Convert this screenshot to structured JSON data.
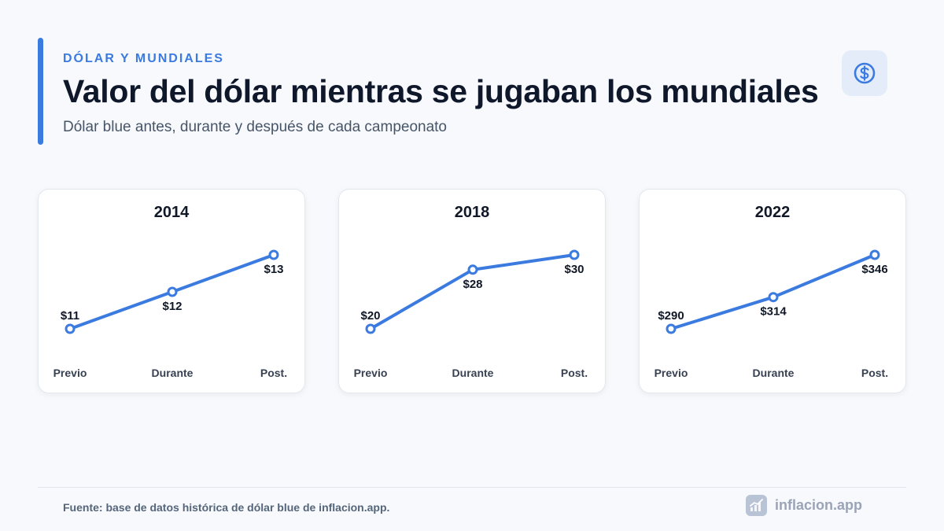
{
  "header": {
    "kicker": "DÓLAR Y MUNDIALES",
    "title": "Valor del dólar mientras se jugaban los mundiales",
    "subtitle": "Dólar blue antes, durante y después de cada campeonato",
    "badge_icon": "dollar-circle-icon"
  },
  "colors": {
    "accent": "#3b7be0",
    "line": "#3b7be0",
    "text_dark": "#0f172a",
    "text_muted": "#475569"
  },
  "chart_data": [
    {
      "type": "line",
      "title": "2014",
      "categories": [
        "Previo",
        "Durante",
        "Post."
      ],
      "values": [
        11,
        12,
        13
      ],
      "labels": [
        "$11",
        "$12",
        "$13"
      ],
      "ylim": [
        11,
        13
      ]
    },
    {
      "type": "line",
      "title": "2018",
      "categories": [
        "Previo",
        "Durante",
        "Post."
      ],
      "values": [
        20,
        28,
        30
      ],
      "labels": [
        "$20",
        "$28",
        "$30"
      ],
      "ylim": [
        20,
        30
      ]
    },
    {
      "type": "line",
      "title": "2022",
      "categories": [
        "Previo",
        "Durante",
        "Post."
      ],
      "values": [
        290,
        314,
        346
      ],
      "labels": [
        "$290",
        "$314",
        "$346"
      ],
      "ylim": [
        290,
        346
      ]
    }
  ],
  "footer": {
    "source": "Fuente: base de datos histórica de dólar blue de inflacion.app.",
    "brand": "inflacion.app",
    "brand_icon": "trend-chart-icon"
  }
}
